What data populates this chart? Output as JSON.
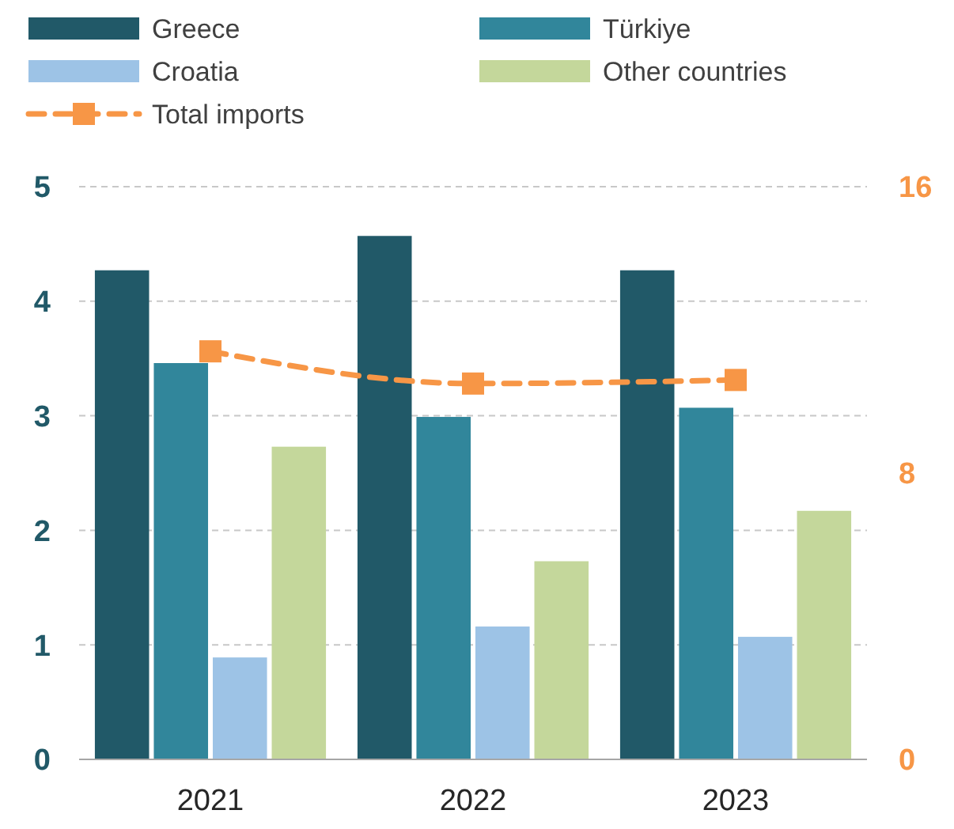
{
  "chart_data": {
    "type": "bar",
    "categories": [
      "2021",
      "2022",
      "2023"
    ],
    "series": [
      {
        "name": "Greece",
        "color": "#215968",
        "values": [
          4.27,
          4.57,
          4.27
        ]
      },
      {
        "name": "Türkiye",
        "color": "#31869b",
        "values": [
          3.46,
          2.99,
          3.07
        ]
      },
      {
        "name": "Croatia",
        "color": "#9dc3e6",
        "values": [
          0.89,
          1.16,
          1.07
        ]
      },
      {
        "name": "Other countries",
        "color": "#c4d79b",
        "values": [
          2.73,
          1.73,
          2.17
        ]
      },
      {
        "name": "Total imports",
        "type": "line",
        "axis": "y2",
        "color": "#f79646",
        "values": [
          11.4,
          10.5,
          10.6
        ],
        "marker": "square",
        "line_style": "dashed"
      }
    ],
    "ylim": [
      0,
      5
    ],
    "yticks": [
      0,
      1,
      2,
      3,
      4,
      5
    ],
    "y2lim": [
      0,
      16
    ],
    "y2ticks": [
      0,
      8,
      16
    ],
    "grid": "y",
    "legend": "top"
  }
}
